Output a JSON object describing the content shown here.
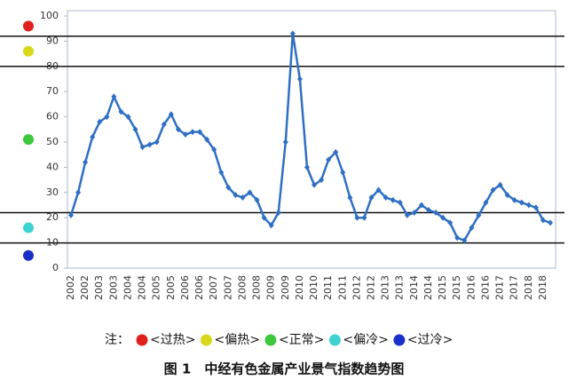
{
  "chart_data": {
    "type": "line",
    "title": "图 1　中经有色金属产业景气指数趋势图",
    "categories": [
      "2002",
      null,
      "2002",
      null,
      "2003",
      null,
      "2003",
      null,
      "2004",
      null,
      "2004",
      null,
      "2005",
      null,
      "2005",
      null,
      "2006",
      null,
      "2006",
      null,
      "2007",
      null,
      "2007",
      null,
      "2008",
      null,
      "2008",
      null,
      "2009",
      null,
      "2009",
      null,
      "2010",
      null,
      "2010",
      null,
      "2011",
      null,
      "2011",
      null,
      "2012",
      null,
      "2012",
      null,
      "2013",
      null,
      "2013",
      null,
      "2014",
      null,
      "2014",
      null,
      "2015",
      null,
      "2015",
      null,
      "2016",
      null,
      "2016",
      null,
      "2017",
      null,
      "2017",
      null,
      "2018",
      null,
      "2018",
      null
    ],
    "series": [
      {
        "color": "#2f6fc4",
        "values": [
          21,
          30,
          42,
          52,
          58,
          60,
          68,
          62,
          60,
          55,
          48,
          49,
          50,
          57,
          61,
          55,
          53,
          54,
          54,
          51,
          47,
          38,
          32,
          29,
          28,
          30,
          27,
          20,
          17,
          22,
          50,
          93,
          75,
          40,
          33,
          35,
          43,
          46,
          38,
          28,
          20,
          20,
          28,
          31,
          28,
          27,
          26,
          21,
          22,
          25,
          23,
          22,
          20,
          18,
          12,
          11,
          16,
          21,
          26,
          31,
          33,
          29,
          27,
          26,
          25,
          24,
          19,
          18
        ]
      }
    ],
    "ylim": [
      0,
      100
    ],
    "yticks": [
      0,
      10,
      20,
      30,
      40,
      50,
      60,
      70,
      80,
      90,
      100
    ],
    "thresholds": [
      92,
      80,
      22,
      10
    ],
    "legend_title": "注：",
    "zones": [
      {
        "name": "<过热>",
        "color": "#e0201c"
      },
      {
        "name": "<偏热>",
        "color": "#d8d81a"
      },
      {
        "name": "<正常>",
        "color": "#3cc83c"
      },
      {
        "name": "<偏冷>",
        "color": "#3cd2d2"
      },
      {
        "name": "<过冷>",
        "color": "#1a2fc8"
      }
    ]
  }
}
